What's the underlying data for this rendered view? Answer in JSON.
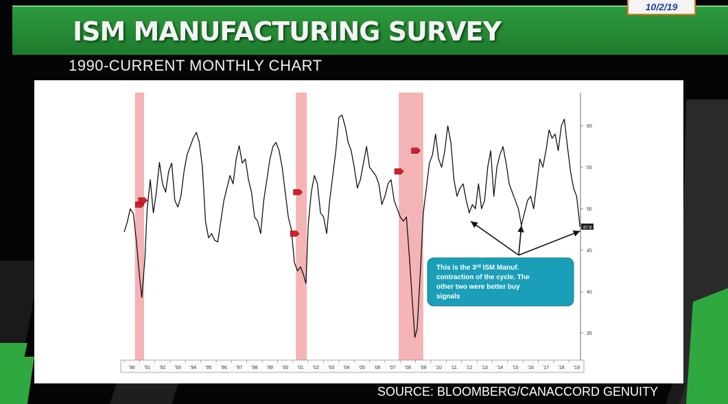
{
  "header": {
    "title": "ISM MANUFACTURING SURVEY",
    "date": "10/2/19",
    "subtitle": "1990-CURRENT MONTHLY CHART"
  },
  "footer": {
    "source": "SOURCE: BLOOMBERG/CANACCORD GENUITY"
  },
  "colors": {
    "banner": "#1f8a33",
    "recession": "#f4b3b5",
    "callout": "#1b9fb8",
    "marker": "#d0202a"
  },
  "chart_data": {
    "type": "line",
    "xlim": [
      1990,
      2019.75
    ],
    "ylim": [
      32,
      64
    ],
    "x_tick_labels": [
      "'90",
      "'91",
      "'92",
      "'93",
      "'94",
      "'95",
      "'96",
      "'97",
      "'98",
      "'99",
      "'00",
      "'01",
      "'02",
      "'03",
      "'04",
      "'05",
      "'06",
      "'07",
      "'08",
      "'09",
      "'10",
      "'11",
      "'12",
      "'13",
      "'14",
      "'15",
      "'16",
      "'17",
      "'18",
      "'19"
    ],
    "y_ticks": [
      35,
      40,
      45,
      50,
      55,
      60
    ],
    "last_value_label": "47.8",
    "recessions": [
      [
        1990.7,
        1991.3
      ],
      [
        2001.2,
        2001.9
      ],
      [
        2007.9,
        2009.5
      ]
    ],
    "markers": [
      {
        "x": 1991.0,
        "y": 50.5
      },
      {
        "x": 1991.2,
        "y": 51.0
      },
      {
        "x": 2001.1,
        "y": 47.0
      },
      {
        "x": 2001.3,
        "y": 52.0
      },
      {
        "x": 2007.9,
        "y": 54.5
      },
      {
        "x": 2009.0,
        "y": 57.0
      }
    ],
    "series": [
      {
        "points": [
          [
            1990.0,
            47.2
          ],
          [
            1990.2,
            48.4
          ],
          [
            1990.4,
            50.0
          ],
          [
            1990.6,
            49.4
          ],
          [
            1990.8,
            46.0
          ],
          [
            1991.0,
            41.8
          ],
          [
            1991.15,
            39.3
          ],
          [
            1991.35,
            44.0
          ],
          [
            1991.5,
            50.0
          ],
          [
            1991.7,
            53.5
          ],
          [
            1991.9,
            49.5
          ],
          [
            1992.1,
            52.0
          ],
          [
            1992.3,
            55.6
          ],
          [
            1992.5,
            53.0
          ],
          [
            1992.7,
            52.0
          ],
          [
            1992.9,
            54.5
          ],
          [
            1993.1,
            55.5
          ],
          [
            1993.3,
            51.0
          ],
          [
            1993.5,
            50.2
          ],
          [
            1993.7,
            51.5
          ],
          [
            1993.9,
            54.5
          ],
          [
            1994.1,
            56.5
          ],
          [
            1994.3,
            57.5
          ],
          [
            1994.5,
            58.5
          ],
          [
            1994.7,
            59.2
          ],
          [
            1994.9,
            58.0
          ],
          [
            1995.1,
            55.0
          ],
          [
            1995.3,
            48.5
          ],
          [
            1995.5,
            46.5
          ],
          [
            1995.7,
            47.0
          ],
          [
            1995.9,
            46.2
          ],
          [
            1996.1,
            46.0
          ],
          [
            1996.3,
            48.5
          ],
          [
            1996.5,
            51.0
          ],
          [
            1996.7,
            52.5
          ],
          [
            1996.9,
            54.0
          ],
          [
            1997.1,
            53.0
          ],
          [
            1997.3,
            56.0
          ],
          [
            1997.5,
            57.6
          ],
          [
            1997.7,
            55.5
          ],
          [
            1997.9,
            56.0
          ],
          [
            1998.1,
            53.5
          ],
          [
            1998.3,
            52.0
          ],
          [
            1998.5,
            49.0
          ],
          [
            1998.7,
            48.5
          ],
          [
            1998.9,
            47.0
          ],
          [
            1999.1,
            51.0
          ],
          [
            1999.3,
            53.5
          ],
          [
            1999.5,
            56.0
          ],
          [
            1999.7,
            57.5
          ],
          [
            1999.9,
            58.0
          ],
          [
            2000.1,
            57.0
          ],
          [
            2000.3,
            55.0
          ],
          [
            2000.5,
            52.0
          ],
          [
            2000.7,
            49.0
          ],
          [
            2000.9,
            47.5
          ],
          [
            2001.1,
            43.5
          ],
          [
            2001.3,
            42.5
          ],
          [
            2001.5,
            43.0
          ],
          [
            2001.7,
            42.0
          ],
          [
            2001.85,
            41.0
          ],
          [
            2002.0,
            48.0
          ],
          [
            2002.2,
            52.0
          ],
          [
            2002.4,
            54.0
          ],
          [
            2002.6,
            53.0
          ],
          [
            2002.8,
            49.5
          ],
          [
            2003.0,
            49.0
          ],
          [
            2003.2,
            47.0
          ],
          [
            2003.4,
            51.0
          ],
          [
            2003.6,
            54.0
          ],
          [
            2003.8,
            57.0
          ],
          [
            2004.0,
            61.0
          ],
          [
            2004.2,
            61.3
          ],
          [
            2004.4,
            60.0
          ],
          [
            2004.6,
            58.0
          ],
          [
            2004.8,
            57.0
          ],
          [
            2005.0,
            55.0
          ],
          [
            2005.2,
            52.5
          ],
          [
            2005.4,
            53.5
          ],
          [
            2005.6,
            55.5
          ],
          [
            2005.8,
            57.5
          ],
          [
            2006.0,
            55.0
          ],
          [
            2006.2,
            54.5
          ],
          [
            2006.4,
            54.0
          ],
          [
            2006.6,
            53.0
          ],
          [
            2006.8,
            50.5
          ],
          [
            2007.0,
            51.5
          ],
          [
            2007.2,
            53.0
          ],
          [
            2007.4,
            53.5
          ],
          [
            2007.6,
            51.0
          ],
          [
            2007.8,
            50.0
          ],
          [
            2008.0,
            49.0
          ],
          [
            2008.2,
            48.5
          ],
          [
            2008.4,
            49.0
          ],
          [
            2008.6,
            44.0
          ],
          [
            2008.8,
            38.5
          ],
          [
            2008.95,
            34.5
          ],
          [
            2009.1,
            35.5
          ],
          [
            2009.3,
            42.0
          ],
          [
            2009.5,
            49.5
          ],
          [
            2009.7,
            52.5
          ],
          [
            2009.9,
            55.5
          ],
          [
            2010.1,
            56.5
          ],
          [
            2010.3,
            59.0
          ],
          [
            2010.5,
            56.0
          ],
          [
            2010.7,
            55.0
          ],
          [
            2010.9,
            57.0
          ],
          [
            2011.1,
            60.0
          ],
          [
            2011.3,
            58.0
          ],
          [
            2011.5,
            53.5
          ],
          [
            2011.7,
            51.5
          ],
          [
            2011.9,
            52.5
          ],
          [
            2012.1,
            53.0
          ],
          [
            2012.3,
            51.0
          ],
          [
            2012.5,
            49.5
          ],
          [
            2012.7,
            50.5
          ],
          [
            2012.9,
            50.0
          ],
          [
            2013.1,
            53.0
          ],
          [
            2013.3,
            50.0
          ],
          [
            2013.5,
            51.0
          ],
          [
            2013.7,
            55.0
          ],
          [
            2013.9,
            57.0
          ],
          [
            2014.1,
            51.5
          ],
          [
            2014.3,
            55.0
          ],
          [
            2014.5,
            56.5
          ],
          [
            2014.7,
            57.5
          ],
          [
            2014.9,
            55.5
          ],
          [
            2015.1,
            53.0
          ],
          [
            2015.3,
            52.0
          ],
          [
            2015.5,
            51.0
          ],
          [
            2015.7,
            50.0
          ],
          [
            2015.9,
            48.0
          ],
          [
            2016.1,
            49.5
          ],
          [
            2016.3,
            51.0
          ],
          [
            2016.5,
            51.5
          ],
          [
            2016.7,
            50.0
          ],
          [
            2016.9,
            53.0
          ],
          [
            2017.1,
            56.0
          ],
          [
            2017.3,
            55.0
          ],
          [
            2017.5,
            57.0
          ],
          [
            2017.7,
            59.5
          ],
          [
            2017.9,
            58.5
          ],
          [
            2018.1,
            59.0
          ],
          [
            2018.3,
            57.0
          ],
          [
            2018.5,
            60.0
          ],
          [
            2018.7,
            60.8
          ],
          [
            2018.9,
            57.5
          ],
          [
            2019.1,
            54.5
          ],
          [
            2019.3,
            52.5
          ],
          [
            2019.5,
            51.5
          ],
          [
            2019.65,
            49.0
          ],
          [
            2019.72,
            47.8
          ]
        ]
      }
    ],
    "annotation": {
      "line1_pre": "This is the 3",
      "line1_sup": "rd",
      "line1_post": " ISM Manuf.",
      "line2": "contraction of the cycle.  The",
      "line3": "other two were better buy",
      "line4": "signals"
    }
  }
}
